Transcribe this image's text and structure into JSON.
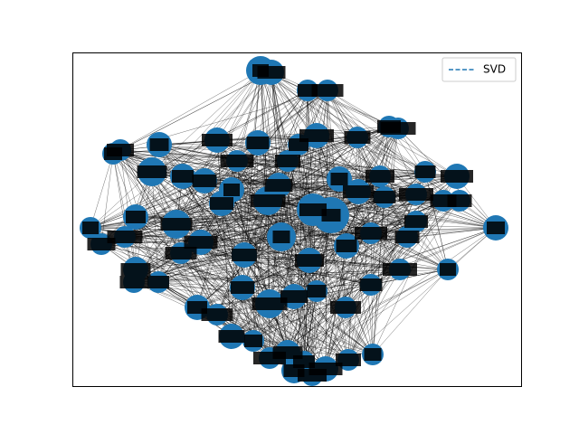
{
  "chart_data": {
    "type": "network",
    "legend": {
      "entries": [
        {
          "label": "SVD",
          "line_style": "dashed",
          "color": "#1f77b4"
        }
      ],
      "placement": "top-right"
    },
    "node_color": "#1f77b4",
    "edge_color": "#000000",
    "axes_ticks_visible": false,
    "node_labels_legible": false
  }
}
